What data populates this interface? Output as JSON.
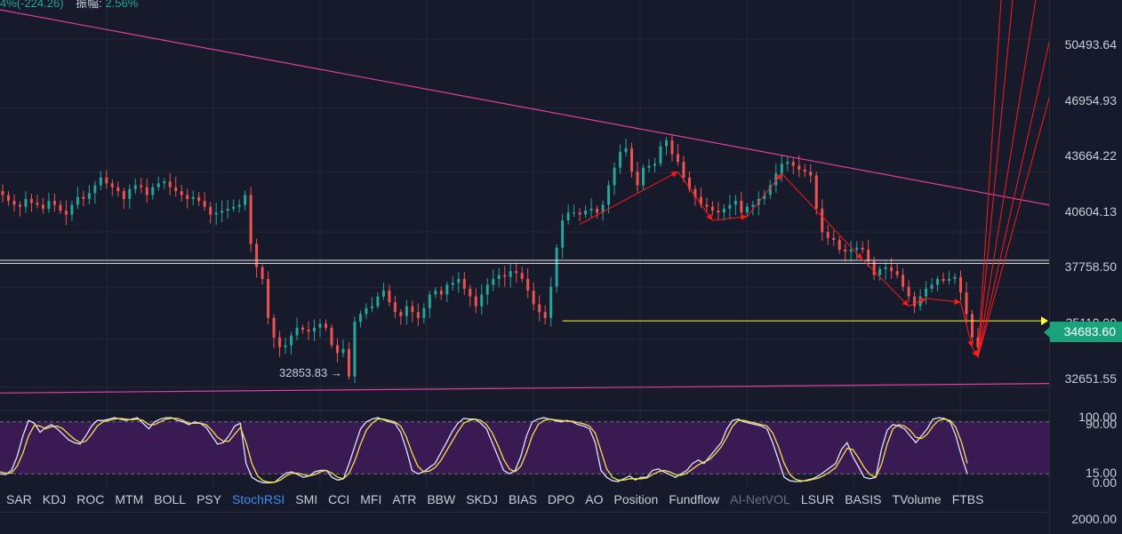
{
  "header": {
    "change_text": "4%(-224.26)",
    "amplitude_label": "振幅:",
    "amplitude_value": "2.56%"
  },
  "price_axis": {
    "ticks": [
      "50493.64",
      "46954.93",
      "43664.22",
      "40604.13",
      "37758.50",
      "35110.00",
      "32651.55"
    ],
    "current_price": "34683.60",
    "low_label": "32853.83",
    "low_arrow": "→"
  },
  "indicator_axis": {
    "ticks": [
      "100.00",
      "90.00",
      "15.00",
      "0.00"
    ],
    "bottom_tick": "2000.00"
  },
  "toolbar": {
    "items": [
      {
        "label": "SAR",
        "state": "normal"
      },
      {
        "label": "KDJ",
        "state": "normal"
      },
      {
        "label": "ROC",
        "state": "normal"
      },
      {
        "label": "MTM",
        "state": "normal"
      },
      {
        "label": "BOLL",
        "state": "normal"
      },
      {
        "label": "PSY",
        "state": "normal"
      },
      {
        "label": "StochRSI",
        "state": "active"
      },
      {
        "label": "SMI",
        "state": "normal"
      },
      {
        "label": "CCI",
        "state": "normal"
      },
      {
        "label": "MFI",
        "state": "normal"
      },
      {
        "label": "ATR",
        "state": "normal"
      },
      {
        "label": "BBW",
        "state": "normal"
      },
      {
        "label": "SKDJ",
        "state": "normal"
      },
      {
        "label": "BIAS",
        "state": "normal"
      },
      {
        "label": "DPO",
        "state": "normal"
      },
      {
        "label": "AO",
        "state": "normal"
      },
      {
        "label": "Position",
        "state": "normal"
      },
      {
        "label": "Fundflow",
        "state": "normal"
      },
      {
        "label": "AI-NetVOL",
        "state": "disabled"
      },
      {
        "label": "LSUR",
        "state": "normal"
      },
      {
        "label": "BASIS",
        "state": "normal"
      },
      {
        "label": "TVolume",
        "state": "normal"
      },
      {
        "label": "FTBS",
        "state": "normal"
      }
    ]
  },
  "colors": {
    "background": "#161a2b",
    "up_candle": "#26a69a",
    "down_candle": "#ef5350",
    "trendline": "#e0409a",
    "support_line": "#ffff33",
    "resistance_line": "#e8e8e8",
    "zigzag": "#ff1a1a",
    "rsi_band": "#3a1a52",
    "stoch_k": "#dfe3ff",
    "stoch_d": "#f5e04a",
    "price_tag": "#1aa37a"
  },
  "chart_data": [
    {
      "type": "candlestick",
      "title": "",
      "ylim": [
        32000,
        52500
      ],
      "price_ticks": [
        50493.64,
        46954.93,
        43664.22,
        40604.13,
        37758.5,
        35110.0,
        32651.55
      ],
      "current_price": 34683.6,
      "marked_low": 32853.83,
      "closes": [
        42500,
        42200,
        42000,
        41900,
        42300,
        42100,
        42000,
        41800,
        42200,
        42000,
        41700,
        41500,
        42000,
        42400,
        42300,
        42600,
        43000,
        43400,
        43100,
        42900,
        42700,
        42300,
        42800,
        43000,
        42900,
        42500,
        42900,
        43100,
        43200,
        42900,
        42700,
        42500,
        42300,
        42400,
        42200,
        41900,
        41500,
        41600,
        41700,
        41800,
        41900,
        42000,
        42500,
        40000,
        38800,
        38200,
        36200,
        35200,
        34700,
        34800,
        35300,
        35700,
        35600,
        35500,
        35700,
        35900,
        35700,
        34800,
        34400,
        34600,
        33200,
        36000,
        36400,
        36700,
        36800,
        37300,
        37600,
        37000,
        36500,
        36300,
        36800,
        36500,
        36200,
        36700,
        37400,
        37600,
        37400,
        37900,
        38000,
        38200,
        37700,
        37300,
        36800,
        37400,
        37900,
        38200,
        38400,
        38300,
        38600,
        38500,
        38200,
        37600,
        36900,
        36500,
        36200,
        37800,
        39800,
        41200,
        41600,
        41600,
        41500,
        41700,
        41800,
        41600,
        42000,
        43000,
        43900,
        44700,
        44900,
        43700,
        43000,
        43900,
        44000,
        44100,
        45000,
        45300,
        44600,
        44200,
        43400,
        42800,
        42400,
        42000,
        41900,
        41700,
        41600,
        41800,
        42000,
        42200,
        41600,
        41900,
        42000,
        42300,
        42500,
        43000,
        43600,
        44100,
        44200,
        44000,
        43800,
        43700,
        43500,
        41800,
        40600,
        40300,
        40200,
        39700,
        39600,
        39700,
        39800,
        39700,
        39100,
        38400,
        38700,
        38800,
        38600,
        38400,
        37800,
        37300,
        36800,
        37300,
        37700,
        37900,
        38200,
        38100,
        38200,
        38300,
        37500,
        36400,
        35200,
        34700
      ],
      "trendlines": [
        {
          "from": [
            0,
            52000
          ],
          "to": [
            187,
            41700
          ]
        },
        {
          "from": [
            0,
            32350
          ],
          "to": [
            187,
            32850
          ]
        }
      ],
      "resistance": [
        39000,
        39150
      ],
      "support": 36050
    },
    {
      "type": "line",
      "title": "",
      "indicator": "StochRSI",
      "ylim": [
        0,
        100
      ],
      "levels": [
        90,
        15
      ],
      "series": [
        {
          "name": "K",
          "values": [
            15,
            14,
            20,
            40,
            70,
            92,
            88,
            75,
            82,
            86,
            80,
            72,
            64,
            60,
            58,
            70,
            84,
            92,
            92,
            94,
            96,
            94,
            92,
            94,
            96,
            88,
            80,
            90,
            94,
            96,
            96,
            92,
            90,
            86,
            90,
            88,
            82,
            70,
            58,
            60,
            70,
            84,
            88,
            30,
            10,
            5,
            2,
            2,
            3,
            10,
            16,
            18,
            14,
            10,
            12,
            18,
            20,
            20,
            10,
            6,
            8,
            30,
            55,
            80,
            90,
            94,
            96,
            93,
            90,
            88,
            75,
            50,
            20,
            15,
            18,
            24,
            30,
            45,
            60,
            76,
            88,
            95,
            94,
            94,
            88,
            80,
            60,
            40,
            20,
            15,
            20,
            40,
            70,
            90,
            94,
            96,
            94,
            92,
            90,
            92,
            90,
            86,
            84,
            80,
            60,
            20,
            10,
            5,
            4,
            8,
            12,
            6,
            10,
            10,
            20,
            22,
            18,
            14,
            10,
            15,
            20,
            30,
            35,
            30,
            40,
            50,
            60,
            80,
            92,
            94,
            90,
            88,
            86,
            84,
            80,
            60,
            35,
            10,
            5,
            4,
            4,
            6,
            8,
            12,
            18,
            24,
            30,
            50,
            60,
            40,
            25,
            10,
            8,
            10,
            50,
            78,
            86,
            84,
            80,
            70,
            60,
            70,
            80,
            94,
            96,
            95,
            90,
            70,
            40,
            15
          ]
        },
        {
          "name": "D",
          "values": [
            18,
            16,
            16,
            26,
            45,
            70,
            85,
            84,
            80,
            83,
            84,
            80,
            72,
            65,
            60,
            62,
            72,
            84,
            90,
            92,
            94,
            95,
            94,
            93,
            94,
            92,
            86,
            86,
            90,
            94,
            95,
            95,
            92,
            88,
            88,
            88,
            86,
            78,
            68,
            62,
            62,
            72,
            82,
            60,
            30,
            12,
            5,
            3,
            3,
            6,
            12,
            16,
            16,
            14,
            12,
            14,
            18,
            20,
            16,
            10,
            8,
            16,
            34,
            58,
            78,
            88,
            94,
            94,
            92,
            90,
            84,
            68,
            45,
            26,
            18,
            19,
            24,
            34,
            48,
            62,
            76,
            88,
            92,
            94,
            92,
            86,
            74,
            56,
            36,
            22,
            18,
            26,
            46,
            70,
            86,
            92,
            94,
            93,
            92,
            91,
            91,
            89,
            87,
            84,
            74,
            48,
            22,
            10,
            6,
            6,
            8,
            8,
            8,
            9,
            14,
            18,
            20,
            18,
            14,
            13,
            16,
            22,
            28,
            32,
            36,
            44,
            54,
            68,
            84,
            92,
            92,
            90,
            88,
            86,
            84,
            74,
            54,
            30,
            14,
            7,
            5,
            5,
            7,
            9,
            13,
            18,
            24,
            38,
            52,
            50,
            38,
            24,
            14,
            10,
            28,
            58,
            80,
            86,
            84,
            78,
            68,
            66,
            72,
            84,
            92,
            94,
            92,
            82,
            60,
            30
          ]
        }
      ]
    }
  ]
}
